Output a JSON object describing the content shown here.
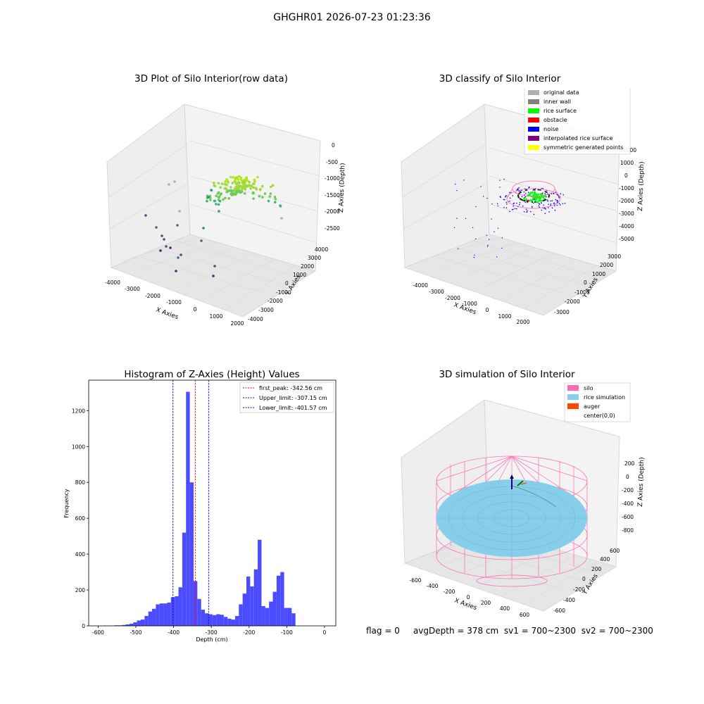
{
  "suptitle": "GHGHR01 2026-07-23 01:23:36",
  "status": {
    "flag": "flag = 0",
    "avg_depth": "avgDepth = 378 cm",
    "sv1": "sv1 = 700~2300",
    "sv2": "sv2 = 700~2300"
  },
  "colors": {
    "hist_bar": "#4b4bff",
    "peak_line": "#ff0000",
    "limit_line": "#0000cc",
    "silo": "#ff69b4",
    "rice_simulation": "#87ceeb",
    "auger": "#ff4500",
    "rice_surface": "#00ff00",
    "noise": "#0000ff",
    "obstacle": "#ff0000"
  },
  "panels": {
    "raw": {
      "title": "3D Plot of Silo Interior(row data)",
      "xlabel": "X Axies",
      "ylabel": "Y Axies",
      "zlabel": "Z Axies (Depth)",
      "xticks": [
        "-4000",
        "-3000",
        "-2000",
        "-1000",
        "0",
        "1000",
        "2000"
      ],
      "yticks": [
        "-4000",
        "-3000",
        "-2000",
        "-1000",
        "0",
        "1000",
        "2000",
        "3000",
        "4000"
      ],
      "zticks": [
        "0",
        "-500",
        "-1000",
        "-1500",
        "-2000",
        "-2500"
      ]
    },
    "classify": {
      "title": "3D classify of Silo Interior",
      "xlabel": "X Axies",
      "ylabel": "Y Axies",
      "zlabel": "Z Axies (Depth)",
      "xticks": [
        "-4000",
        "-3000",
        "-2000",
        "-1000",
        "0",
        "1000",
        "2000"
      ],
      "yticks": [
        "-3000",
        "-2000",
        "-1000",
        "0",
        "1000",
        "2000",
        "3000"
      ],
      "zticks": [
        "2000",
        "1000",
        "0",
        "-1000",
        "-2000",
        "-3000",
        "-4000",
        "-5000"
      ],
      "legend": [
        {
          "label": "original data",
          "color": "#b0b0b0"
        },
        {
          "label": "inner wall",
          "color": "#808080"
        },
        {
          "label": "rice surface",
          "color": "#00ff00"
        },
        {
          "label": "obstacle",
          "color": "#ff0000"
        },
        {
          "label": "noise",
          "color": "#0000ff"
        },
        {
          "label": "interpolated rice surface",
          "color": "#800080"
        },
        {
          "label": "symmetric generated points",
          "color": "#ffff00"
        }
      ]
    },
    "simulation": {
      "title": "3D simulation of Silo Interior",
      "xlabel": "X Axies",
      "ylabel": "Y Axies",
      "zlabel": "Z Axies (Depth)",
      "xticks": [
        "-600",
        "-400",
        "-200",
        "0",
        "200",
        "400",
        "600"
      ],
      "yticks": [
        "-600",
        "-400",
        "-200",
        "0",
        "200",
        "400",
        "600"
      ],
      "zticks": [
        "200",
        "0",
        "-200",
        "-400",
        "-600",
        "-800"
      ],
      "legend": [
        {
          "label": "silo",
          "color": "#ff69b4"
        },
        {
          "label": "rice simulation",
          "color": "#87ceeb"
        },
        {
          "label": "auger",
          "color": "#ff4500"
        },
        {
          "label": "center(0,0)",
          "color": "transparent"
        }
      ]
    }
  },
  "chart_data": {
    "type": "bar",
    "title": "Histogram of Z-Axies (Height) Values",
    "xlabel": "Depth (cm)",
    "ylabel": "Frequency",
    "xlim": [
      -625,
      30
    ],
    "ylim": [
      0,
      1370
    ],
    "xticks": [
      -600,
      -500,
      -400,
      -300,
      -200,
      -100,
      0
    ],
    "yticks": [
      0,
      200,
      400,
      600,
      800,
      1000,
      1200
    ],
    "bin_edges": [
      -587,
      -577,
      -567,
      -557,
      -547,
      -537,
      -527,
      -517,
      -507,
      -497,
      -487,
      -477,
      -467,
      -457,
      -447,
      -437,
      -427,
      -417,
      -407,
      -397,
      -387,
      -377,
      -367,
      -357,
      -347,
      -337,
      -327,
      -317,
      -307,
      -297,
      -287,
      -277,
      -267,
      -257,
      -247,
      -237,
      -227,
      -217,
      -207,
      -197,
      -187,
      -177,
      -167,
      -157,
      -147,
      -137,
      -127,
      -117,
      -107,
      -97,
      -87,
      -77,
      -67,
      -57,
      -47,
      -37,
      -27,
      -17,
      -7,
      0
    ],
    "counts": [
      1,
      1,
      1,
      3,
      3,
      5,
      8,
      12,
      20,
      30,
      35,
      55,
      80,
      95,
      120,
      125,
      125,
      130,
      160,
      165,
      215,
      520,
      1305,
      800,
      250,
      150,
      90,
      70,
      65,
      60,
      65,
      62,
      50,
      40,
      35,
      55,
      120,
      180,
      275,
      220,
      315,
      480,
      110,
      100,
      135,
      190,
      280,
      300,
      100,
      100,
      70,
      0,
      0,
      0,
      0,
      0,
      0,
      0,
      0
    ],
    "legend_position": "top-right",
    "vlines": [
      {
        "label": "first_peak: -342.56 cm",
        "x": -342.56,
        "color": "#ff0000"
      },
      {
        "label": "Upper_limit: -307.15 cm",
        "x": -307.15,
        "color": "#0000cc"
      },
      {
        "label": "Lower_limit: -401.57 cm",
        "x": -401.57,
        "color": "#0000cc"
      }
    ]
  }
}
